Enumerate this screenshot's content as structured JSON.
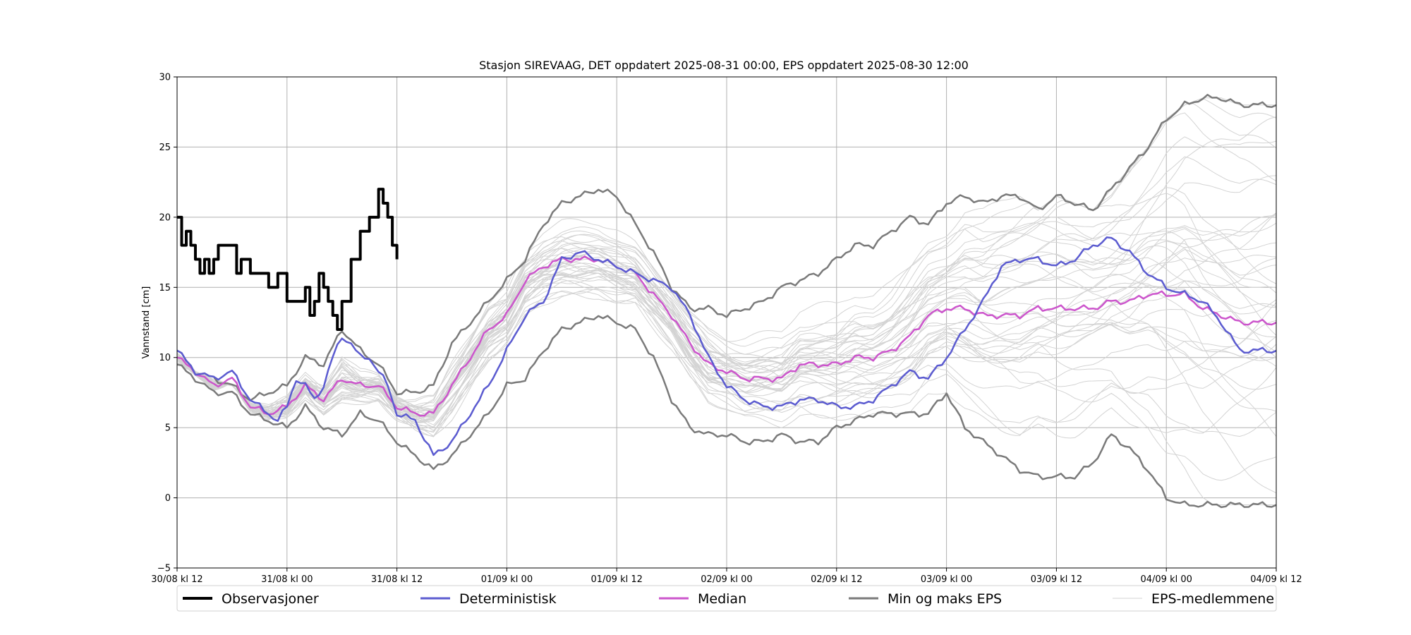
{
  "chart_data": {
    "type": "line",
    "title": "Stasjon SIREVAAG, DET oppdatert 2025-08-31 00:00, EPS oppdatert 2025-08-30 12:00",
    "ylabel": "Vannstand [cm]",
    "xlabel": "",
    "ylim": [
      -5,
      30
    ],
    "yticks": [
      30,
      25,
      20,
      15,
      10,
      5,
      0,
      -5
    ],
    "ytick_labels": [
      "30",
      "25",
      "20",
      "15",
      "10",
      "5",
      "0",
      "−5"
    ],
    "xlim_hours": [
      0,
      120
    ],
    "xticks_hours": [
      0,
      12,
      24,
      36,
      48,
      60,
      72,
      84,
      96,
      108,
      120
    ],
    "xtick_labels": [
      "30/08 kl 12",
      "31/08 kl 00",
      "31/08 kl 12",
      "01/09 kl 00",
      "01/09 kl 12",
      "02/09 kl 00",
      "02/09 kl 12",
      "03/09 kl 00",
      "03/09 kl 12",
      "04/09 kl 00",
      "04/09 kl 12"
    ],
    "grid": true,
    "legend_position": "bottom",
    "colors": {
      "observasjoner": "#000000",
      "deterministisk": "#5b5bd0",
      "median": "#cc55cc",
      "minmax": "#7a7a7a",
      "members": "#d3d3d3"
    },
    "series": [
      {
        "name": "Observasjoner",
        "x": [
          0,
          0.5,
          1,
          1.5,
          2,
          2.5,
          3,
          3.5,
          4,
          4.5,
          5,
          6,
          6.5,
          7,
          8,
          9,
          10,
          11,
          12,
          13,
          14,
          14.5,
          15,
          15.5,
          16,
          16.5,
          17,
          17.5,
          18,
          19,
          20,
          21,
          22,
          22.5,
          23,
          23.5,
          24
        ],
        "y": [
          20,
          18,
          19,
          18,
          17,
          16,
          17,
          16,
          17,
          18,
          18,
          18,
          16,
          17,
          16,
          16,
          15,
          16,
          14,
          14,
          15,
          13,
          14,
          16,
          15,
          14,
          13,
          12,
          14,
          17,
          19,
          20,
          22,
          21,
          20,
          18,
          17
        ]
      },
      {
        "name": "Deterministisk",
        "x": [
          0,
          2,
          4,
          6,
          8,
          9,
          10,
          11,
          12,
          13,
          14,
          15,
          16,
          17,
          18,
          19,
          20,
          21,
          22,
          23,
          24,
          26,
          28,
          30,
          32,
          34,
          36,
          38,
          40,
          42,
          44,
          46,
          48,
          50,
          52,
          54,
          56,
          58,
          60,
          62,
          64,
          66,
          68,
          70,
          72,
          74,
          76,
          78,
          80,
          82,
          84,
          86,
          88,
          90,
          92,
          94,
          96,
          98,
          100,
          102,
          104,
          106,
          108,
          110,
          112,
          114,
          116,
          118,
          120
        ],
        "y": [
          10.5,
          9,
          8.5,
          9,
          7,
          6.5,
          6,
          5.5,
          6.5,
          8.5,
          8,
          7,
          8,
          10,
          11.5,
          11,
          10,
          10,
          9,
          8,
          6,
          5.5,
          3,
          4,
          6,
          8,
          10.5,
          13,
          14,
          17,
          17.5,
          17,
          16.5,
          16,
          15.5,
          15,
          13,
          10,
          8,
          7,
          6.5,
          6.5,
          7,
          7,
          6.5,
          6.5,
          7,
          8,
          9,
          8.5,
          10,
          12,
          14,
          16.5,
          17,
          17,
          16.5,
          17,
          18,
          18.5,
          17.5,
          16,
          15,
          14.5,
          14,
          12.5,
          10.5,
          10.5,
          10.5
        ]
      },
      {
        "name": "Median",
        "x": [
          0,
          2,
          4,
          6,
          8,
          10,
          12,
          14,
          16,
          18,
          20,
          22,
          24,
          26,
          28,
          30,
          32,
          34,
          36,
          38,
          40,
          42,
          44,
          46,
          48,
          50,
          52,
          54,
          56,
          58,
          60,
          62,
          64,
          66,
          68,
          70,
          72,
          74,
          76,
          78,
          80,
          82,
          84,
          86,
          88,
          90,
          92,
          94,
          96,
          98,
          100,
          102,
          104,
          106,
          108,
          110,
          112,
          114,
          116,
          118,
          120
        ],
        "y": [
          10,
          9,
          8,
          8.5,
          6.5,
          6,
          6.5,
          8,
          7,
          8.5,
          8,
          8,
          6.5,
          6,
          6,
          8,
          10,
          12,
          13,
          15.5,
          16.5,
          17,
          17,
          17,
          16.5,
          16,
          14.5,
          13,
          11,
          9.5,
          9,
          8.5,
          8.5,
          8.5,
          9.5,
          9.5,
          9.5,
          10,
          10,
          10.5,
          11.5,
          13,
          13.5,
          13.5,
          13,
          13,
          13,
          13.5,
          13.5,
          13.5,
          13.5,
          14,
          14,
          14.5,
          14.5,
          14.5,
          13.5,
          13,
          12.5,
          12.5,
          12.5
        ]
      },
      {
        "name": "Min og maks EPS",
        "role": "max",
        "x": [
          0,
          2,
          4,
          6,
          8,
          10,
          12,
          14,
          16,
          18,
          20,
          22,
          24,
          26,
          28,
          30,
          32,
          34,
          36,
          38,
          40,
          42,
          44,
          46,
          48,
          50,
          52,
          54,
          56,
          58,
          60,
          62,
          64,
          66,
          68,
          70,
          72,
          74,
          76,
          78,
          80,
          82,
          84,
          86,
          88,
          90,
          92,
          94,
          96,
          98,
          100,
          102,
          104,
          106,
          108,
          110,
          112,
          114,
          116,
          118,
          120
        ],
        "y": [
          10.5,
          9,
          8.5,
          8,
          7,
          7.5,
          8,
          10,
          9.5,
          12,
          10.5,
          9.5,
          7.5,
          7.5,
          8,
          11,
          12.5,
          14,
          15.5,
          17,
          19.5,
          21,
          21.5,
          22,
          21.5,
          19.5,
          17.5,
          15,
          13.5,
          13.5,
          13,
          13.5,
          14,
          15,
          15.5,
          16,
          17,
          18,
          18,
          19,
          20,
          19.5,
          21,
          21.5,
          21,
          21.5,
          21.5,
          20.5,
          21.5,
          21,
          20.5,
          22,
          23.5,
          25,
          27,
          28,
          28.5,
          28.5,
          28,
          28,
          28
        ]
      },
      {
        "name": "Min og maks EPS",
        "role": "min",
        "x": [
          0,
          2,
          4,
          6,
          8,
          10,
          12,
          14,
          16,
          18,
          20,
          22,
          24,
          26,
          28,
          30,
          32,
          34,
          36,
          38,
          40,
          42,
          44,
          46,
          48,
          50,
          52,
          54,
          56,
          58,
          60,
          62,
          64,
          66,
          68,
          70,
          72,
          74,
          76,
          78,
          80,
          82,
          84,
          86,
          88,
          90,
          92,
          94,
          96,
          98,
          100,
          102,
          104,
          106,
          108,
          110,
          112,
          114,
          116,
          118,
          120
        ],
        "y": [
          9.5,
          8.5,
          7.5,
          7.5,
          6,
          5.5,
          5,
          6.5,
          5,
          4.5,
          6,
          5.5,
          4,
          3,
          2,
          3,
          4.5,
          6,
          8,
          8.5,
          10.5,
          12,
          12.5,
          13,
          12.5,
          12,
          10,
          7,
          5,
          4.5,
          4.5,
          4,
          4,
          4.5,
          4,
          4,
          5,
          5.5,
          6,
          6,
          6,
          6,
          7.5,
          5,
          4,
          3,
          2,
          1.5,
          1.5,
          1.5,
          2.5,
          4.5,
          3.5,
          2,
          0,
          -0.5,
          -0.5,
          -0.5,
          -0.5,
          -0.5,
          -0.5
        ]
      },
      {
        "name": "EPS-medlemmene",
        "note": "ensemble band",
        "x": [
          0,
          10,
          20,
          28,
          36,
          44,
          52,
          60,
          68,
          76,
          84,
          92,
          100,
          108,
          116,
          120
        ],
        "y": [
          10,
          7,
          9,
          5,
          11,
          17,
          14,
          9,
          8,
          9,
          13,
          13,
          14,
          13,
          13,
          13
        ]
      }
    ],
    "legend": [
      {
        "label": "Observasjoner",
        "color": "#000000",
        "width": 4
      },
      {
        "label": "Deterministisk",
        "color": "#5b5bd0",
        "width": 3
      },
      {
        "label": "Median",
        "color": "#cc55cc",
        "width": 3
      },
      {
        "label": "Min og maks EPS",
        "color": "#7a7a7a",
        "width": 3
      },
      {
        "label": "EPS-medlemmene",
        "color": "#d3d3d3",
        "width": 1
      }
    ]
  }
}
